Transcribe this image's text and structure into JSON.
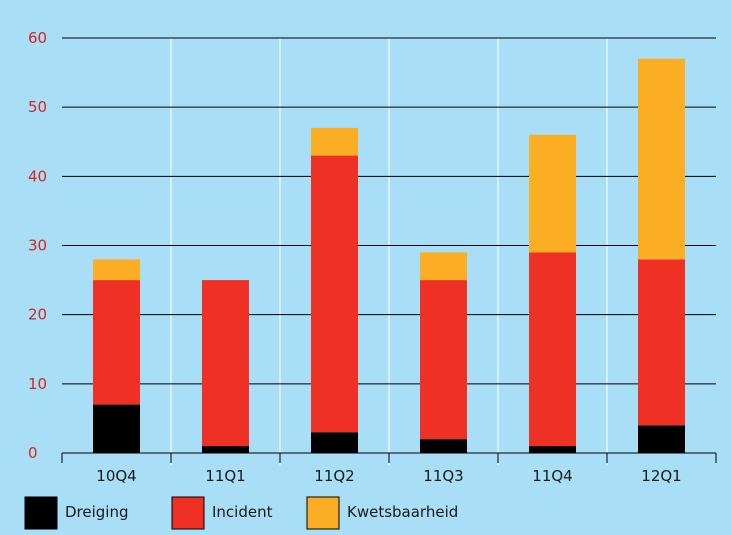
{
  "chart_data": {
    "type": "bar",
    "stacked": true,
    "title": "",
    "xlabel": "",
    "ylabel": "",
    "categories": [
      "10Q4",
      "11Q1",
      "11Q2",
      "11Q3",
      "11Q4",
      "12Q1"
    ],
    "series": [
      {
        "name": "Dreiging",
        "color": "#000000",
        "values": [
          7,
          1,
          3,
          2,
          1,
          4
        ]
      },
      {
        "name": "Incident",
        "color": "#ee3124",
        "values": [
          18,
          24,
          40,
          23,
          28,
          24
        ]
      },
      {
        "name": "Kwetsbaarheid",
        "color": "#fbae24",
        "values": [
          3,
          0,
          4,
          4,
          17,
          29
        ]
      }
    ],
    "ylim": [
      0,
      60
    ],
    "yticks": [
      "0",
      "10",
      "20",
      "30",
      "40",
      "50",
      "60"
    ],
    "grid": true,
    "legend_position": "bottom-left",
    "colors": {
      "background": "#a8def6",
      "ytick_text": "#d8241f",
      "gridline": "#000000",
      "category_separator": "#ffffff"
    }
  }
}
